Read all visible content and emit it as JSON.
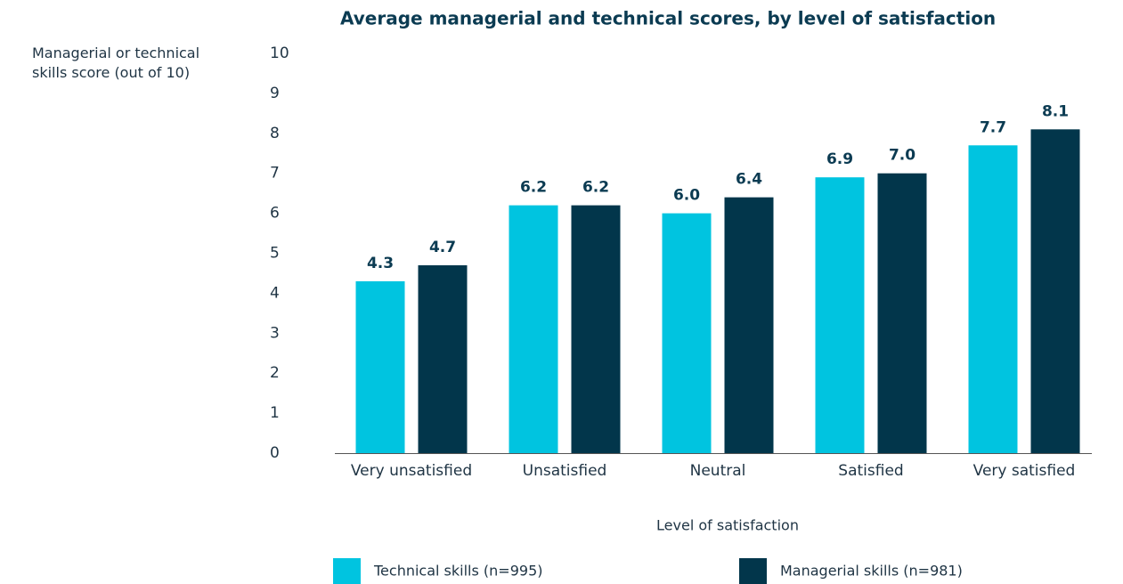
{
  "chart_data": {
    "type": "bar",
    "title": "Average managerial and technical scores, by level of satisfaction",
    "y_label": "Managerial or technical skills score (out of 10)",
    "x_label": "Level of satisfaction",
    "categories": [
      "Very unsatisfied",
      "Unsatisfied",
      "Neutral",
      "Satisfied",
      "Very satisfied"
    ],
    "series": [
      {
        "name": "Technical skills (n=995)",
        "color": "#00c4e0",
        "values": [
          4.3,
          6.2,
          6.0,
          6.9,
          7.7
        ],
        "value_labels": [
          "4.3",
          "6.2",
          "6.0",
          "6.9",
          "7.7"
        ]
      },
      {
        "name": "Managerial skills (n=981)",
        "color": "#02364b",
        "values": [
          4.7,
          6.2,
          6.4,
          7.0,
          8.1
        ],
        "value_labels": [
          "4.7",
          "6.2",
          "6.4",
          "7.0",
          "8.1"
        ]
      }
    ],
    "ylim": [
      0,
      10
    ],
    "yticks": [
      0,
      1,
      2,
      3,
      4,
      5,
      6,
      7,
      8,
      9,
      10
    ],
    "grid": false
  }
}
